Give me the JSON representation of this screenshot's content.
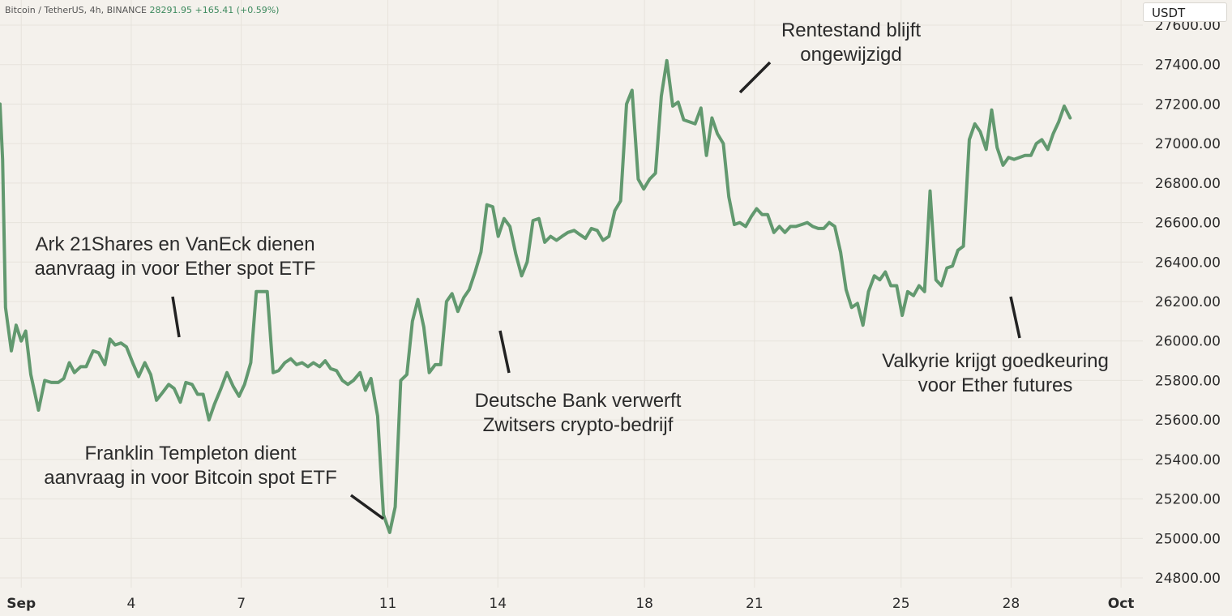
{
  "header": {
    "symbol": "Bitcoin / TetherUS, 4h, BINANCE",
    "price": "28291.95",
    "change": "+165.41 (+0.59%)"
  },
  "unit_label": "USDT",
  "colors": {
    "background": "#f4f1ec",
    "line": "#62996f",
    "grid": "#e7e3dc",
    "text": "#2b2b2b"
  },
  "chart_data": {
    "type": "line",
    "x_unit": "day",
    "x_ticks": [
      {
        "label": "Sep",
        "x": 1
      },
      {
        "label": "4",
        "x": 4
      },
      {
        "label": "7",
        "x": 7
      },
      {
        "label": "11",
        "x": 11
      },
      {
        "label": "14",
        "x": 14
      },
      {
        "label": "18",
        "x": 18
      },
      {
        "label": "21",
        "x": 21
      },
      {
        "label": "25",
        "x": 25
      },
      {
        "label": "28",
        "x": 28
      },
      {
        "label": "Oct",
        "x": 31
      }
    ],
    "y_ticks": [
      "27600.00",
      "27400.00",
      "27200.00",
      "27000.00",
      "26800.00",
      "26600.00",
      "26400.00",
      "26200.00",
      "26000.00",
      "25800.00",
      "25600.00",
      "25400.00",
      "25200.00",
      "25000.00",
      "24800.00"
    ],
    "ylim": [
      24740,
      27660
    ],
    "xlim": [
      0.42,
      31.55
    ],
    "series": [
      {
        "values": [
          [
            0.42,
            27200
          ],
          [
            0.49,
            26920
          ],
          [
            0.57,
            26170
          ],
          [
            0.73,
            25950
          ],
          [
            0.86,
            26080
          ],
          [
            1.0,
            26000
          ],
          [
            1.12,
            26050
          ],
          [
            1.26,
            25830
          ],
          [
            1.47,
            25650
          ],
          [
            1.64,
            25800
          ],
          [
            1.82,
            25790
          ],
          [
            2.01,
            25790
          ],
          [
            2.16,
            25810
          ],
          [
            2.31,
            25890
          ],
          [
            2.45,
            25840
          ],
          [
            2.62,
            25870
          ],
          [
            2.77,
            25870
          ],
          [
            2.96,
            25950
          ],
          [
            3.11,
            25940
          ],
          [
            3.28,
            25880
          ],
          [
            3.42,
            26010
          ],
          [
            3.56,
            25980
          ],
          [
            3.72,
            25990
          ],
          [
            3.87,
            25970
          ],
          [
            4.04,
            25890
          ],
          [
            4.2,
            25820
          ],
          [
            4.37,
            25890
          ],
          [
            4.53,
            25830
          ],
          [
            4.69,
            25700
          ],
          [
            4.86,
            25740
          ],
          [
            5.02,
            25780
          ],
          [
            5.17,
            25760
          ],
          [
            5.34,
            25690
          ],
          [
            5.49,
            25790
          ],
          [
            5.66,
            25780
          ],
          [
            5.81,
            25730
          ],
          [
            5.96,
            25730
          ],
          [
            6.12,
            25600
          ],
          [
            6.27,
            25680
          ],
          [
            6.45,
            25760
          ],
          [
            6.61,
            25840
          ],
          [
            6.78,
            25770
          ],
          [
            6.94,
            25720
          ],
          [
            7.09,
            25780
          ],
          [
            7.26,
            25890
          ],
          [
            7.41,
            26250
          ],
          [
            7.56,
            26250
          ],
          [
            7.71,
            26250
          ],
          [
            7.87,
            25840
          ],
          [
            8.02,
            25850
          ],
          [
            8.19,
            25890
          ],
          [
            8.35,
            25910
          ],
          [
            8.51,
            25880
          ],
          [
            8.66,
            25890
          ],
          [
            8.82,
            25870
          ],
          [
            8.97,
            25890
          ],
          [
            9.14,
            25870
          ],
          [
            9.29,
            25900
          ],
          [
            9.44,
            25860
          ],
          [
            9.6,
            25850
          ],
          [
            9.76,
            25800
          ],
          [
            9.91,
            25780
          ],
          [
            10.06,
            25800
          ],
          [
            10.24,
            25840
          ],
          [
            10.39,
            25750
          ],
          [
            10.54,
            25810
          ],
          [
            10.72,
            25620
          ],
          [
            10.88,
            25120
          ],
          [
            11.05,
            25030
          ],
          [
            11.2,
            25160
          ],
          [
            11.35,
            25800
          ],
          [
            11.52,
            25830
          ],
          [
            11.67,
            26100
          ],
          [
            11.82,
            26210
          ],
          [
            11.98,
            26070
          ],
          [
            12.13,
            25840
          ],
          [
            12.29,
            25880
          ],
          [
            12.44,
            25880
          ],
          [
            12.6,
            26200
          ],
          [
            12.75,
            26240
          ],
          [
            12.91,
            26150
          ],
          [
            13.07,
            26220
          ],
          [
            13.22,
            26260
          ],
          [
            13.38,
            26350
          ],
          [
            13.54,
            26450
          ],
          [
            13.7,
            26690
          ],
          [
            13.86,
            26680
          ],
          [
            14.01,
            26530
          ],
          [
            14.17,
            26620
          ],
          [
            14.33,
            26580
          ],
          [
            14.49,
            26440
          ],
          [
            14.65,
            26330
          ],
          [
            14.8,
            26400
          ],
          [
            14.96,
            26610
          ],
          [
            15.12,
            26620
          ],
          [
            15.28,
            26500
          ],
          [
            15.44,
            26530
          ],
          [
            15.6,
            26510
          ],
          [
            15.75,
            26530
          ],
          [
            15.91,
            26550
          ],
          [
            16.08,
            26560
          ],
          [
            16.23,
            26540
          ],
          [
            16.39,
            26520
          ],
          [
            16.55,
            26570
          ],
          [
            16.71,
            26560
          ],
          [
            16.87,
            26510
          ],
          [
            17.03,
            26530
          ],
          [
            17.19,
            26660
          ],
          [
            17.35,
            26710
          ],
          [
            17.51,
            27200
          ],
          [
            17.66,
            27270
          ],
          [
            17.83,
            26820
          ],
          [
            17.98,
            26770
          ],
          [
            18.14,
            26820
          ],
          [
            18.3,
            26850
          ],
          [
            18.46,
            27240
          ],
          [
            18.61,
            27420
          ],
          [
            18.77,
            27190
          ],
          [
            18.92,
            27210
          ],
          [
            19.07,
            27120
          ],
          [
            19.23,
            27110
          ],
          [
            19.38,
            27100
          ],
          [
            19.54,
            27180
          ],
          [
            19.69,
            26940
          ],
          [
            19.84,
            27130
          ],
          [
            19.99,
            27050
          ],
          [
            20.15,
            27000
          ],
          [
            20.3,
            26730
          ],
          [
            20.45,
            26590
          ],
          [
            20.6,
            26600
          ],
          [
            20.76,
            26580
          ],
          [
            20.91,
            26630
          ],
          [
            21.06,
            26670
          ],
          [
            21.21,
            26640
          ],
          [
            21.36,
            26640
          ],
          [
            21.53,
            26550
          ],
          [
            21.68,
            26580
          ],
          [
            21.83,
            26550
          ],
          [
            21.98,
            26580
          ],
          [
            22.13,
            26580
          ],
          [
            22.29,
            26590
          ],
          [
            22.44,
            26600
          ],
          [
            22.59,
            26580
          ],
          [
            22.74,
            26570
          ],
          [
            22.89,
            26570
          ],
          [
            23.04,
            26600
          ],
          [
            23.19,
            26580
          ],
          [
            23.35,
            26450
          ],
          [
            23.5,
            26260
          ],
          [
            23.65,
            26170
          ],
          [
            23.81,
            26190
          ],
          [
            23.96,
            26080
          ],
          [
            24.11,
            26250
          ],
          [
            24.27,
            26330
          ],
          [
            24.42,
            26310
          ],
          [
            24.57,
            26350
          ],
          [
            24.72,
            26280
          ],
          [
            24.88,
            26280
          ],
          [
            25.03,
            26130
          ],
          [
            25.18,
            26250
          ],
          [
            25.34,
            26230
          ],
          [
            25.49,
            26280
          ],
          [
            25.64,
            26250
          ],
          [
            25.79,
            26760
          ],
          [
            25.95,
            26310
          ],
          [
            26.1,
            26280
          ],
          [
            26.25,
            26370
          ],
          [
            26.4,
            26380
          ],
          [
            26.55,
            26460
          ],
          [
            26.7,
            26480
          ],
          [
            26.86,
            27020
          ],
          [
            27.01,
            27100
          ],
          [
            27.16,
            27060
          ],
          [
            27.32,
            26970
          ],
          [
            27.47,
            27170
          ],
          [
            27.62,
            26980
          ],
          [
            27.78,
            26890
          ],
          [
            27.93,
            26930
          ],
          [
            28.08,
            26920
          ],
          [
            28.23,
            26930
          ],
          [
            28.38,
            26940
          ],
          [
            28.54,
            26940
          ],
          [
            28.69,
            27000
          ],
          [
            28.84,
            27020
          ],
          [
            29.0,
            26970
          ],
          [
            29.15,
            27050
          ],
          [
            29.3,
            27110
          ],
          [
            29.45,
            27190
          ],
          [
            29.61,
            27130
          ]
        ]
      }
    ],
    "annotations": [
      {
        "text": [
          "Ark 21Shares en VanEck dienen",
          "aanvraag in voor Ether spot ETF"
        ],
        "align": "middle"
      },
      {
        "text": [
          "Franklin Templeton dient",
          "aanvraag in voor Bitcoin spot ETF"
        ],
        "align": "middle"
      },
      {
        "text": [
          "Deutsche Bank verwerft",
          "Zwitsers crypto-bedrijf"
        ],
        "align": "middle"
      },
      {
        "text": [
          "Rentestand blijft",
          "ongewijzigd"
        ],
        "align": "middle"
      },
      {
        "text": [
          "Valkyrie krijgt goedkeuring",
          "voor Ether futures"
        ],
        "align": "middle"
      }
    ]
  }
}
